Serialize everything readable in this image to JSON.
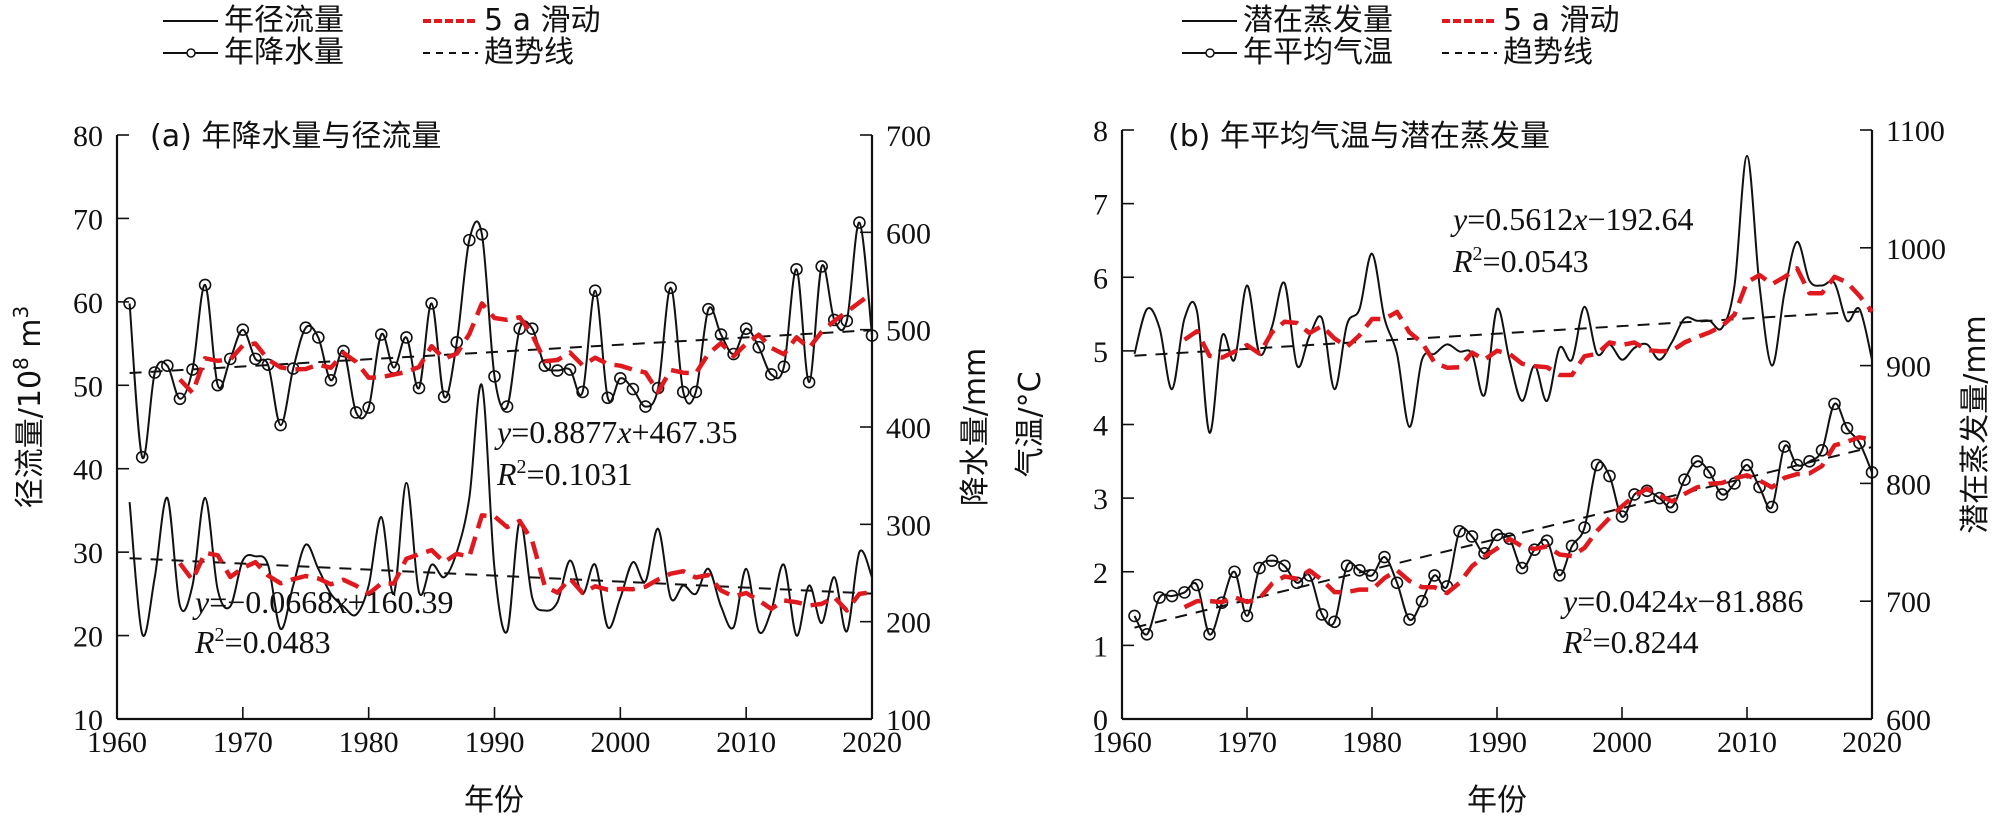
{
  "chart_data": [
    {
      "type": "line",
      "panel": "a",
      "title": "(a) 年降水量与径流量",
      "xlabel": "年份",
      "ylabel_left": "径流量/10⁸ m³",
      "ylabel_left_parts": {
        "main": "径流量/10",
        "sup": "8",
        "unit": " m",
        "sup2": "3"
      },
      "ylabel_right": "降水量/mm",
      "xlim": [
        1960,
        2020
      ],
      "ylim_left": [
        10,
        80
      ],
      "ylim_right": [
        100,
        700
      ],
      "x_ticks": [
        "1960",
        "1970",
        "1980",
        "1990",
        "2000",
        "2010",
        "2020"
      ],
      "y_ticks_left": [
        "10",
        "20",
        "30",
        "40",
        "50",
        "60",
        "70",
        "80"
      ],
      "y_ticks_right": [
        "100",
        "200",
        "300",
        "400",
        "500",
        "600",
        "700"
      ],
      "grid": false,
      "legend": {
        "placement": "top",
        "entries": [
          {
            "label": "年径流量",
            "style": "solid"
          },
          {
            "label": "5 a 滑动",
            "style": "red-dashed"
          },
          {
            "label": "年降水量",
            "style": "solid-circle"
          },
          {
            "label": "趋势线",
            "style": "black-dashed"
          }
        ]
      },
      "x": [
        1961,
        1962,
        1963,
        1964,
        1965,
        1966,
        1967,
        1968,
        1969,
        1970,
        1971,
        1972,
        1973,
        1974,
        1975,
        1976,
        1977,
        1978,
        1979,
        1980,
        1981,
        1982,
        1983,
        1984,
        1985,
        1986,
        1987,
        1988,
        1989,
        1990,
        1991,
        1992,
        1993,
        1994,
        1995,
        1996,
        1997,
        1998,
        1999,
        2000,
        2001,
        2002,
        2003,
        2004,
        2005,
        2006,
        2007,
        2008,
        2009,
        2010,
        2011,
        2012,
        2013,
        2014,
        2015,
        2016,
        2017,
        2018,
        2019,
        2020
      ],
      "series": [
        {
          "name": "年径流量",
          "axis": "left",
          "style": "smooth-solid",
          "values": [
            36.0,
            20.2,
            27.0,
            36.5,
            23.6,
            26.0,
            36.5,
            25.5,
            23.5,
            29.0,
            29.5,
            28.5,
            20.8,
            26.0,
            30.9,
            28.0,
            25.0,
            23.5,
            22.5,
            26.0,
            34.2,
            25.0,
            38.3,
            25.2,
            28.5,
            27.0,
            30.0,
            36.5,
            50.0,
            28.0,
            20.5,
            33.7,
            24.5,
            23.0,
            24.0,
            29.0,
            25.0,
            28.5,
            21.0,
            24.5,
            28.8,
            26.5,
            32.8,
            24.5,
            26.0,
            25.0,
            28.0,
            23.5,
            21.0,
            28.0,
            20.5,
            23.0,
            28.5,
            20.0,
            26.0,
            21.5,
            27.0,
            20.5,
            30.0,
            27.0
          ]
        },
        {
          "name": "年降水量",
          "axis": "right",
          "style": "solid-with-circles",
          "values": [
            527,
            369,
            456,
            463,
            429,
            459,
            546,
            443,
            470,
            500,
            470,
            464,
            402,
            460,
            502,
            492,
            448,
            478,
            415,
            420,
            495,
            461,
            492,
            440,
            527,
            431,
            487,
            592,
            598,
            452,
            421,
            501,
            501,
            463,
            458,
            459,
            436,
            540,
            430,
            450,
            439,
            421,
            440,
            543,
            436,
            436,
            521,
            495,
            475,
            501,
            482,
            454,
            462,
            562,
            446,
            565,
            510,
            509,
            610,
            494
          ]
        },
        {
          "name": "5 a 滑动 (径流量)",
          "axis": "left",
          "style": "red-dashed",
          "method": "5-year moving average of 年径流量"
        },
        {
          "name": "5 a 滑动 (降水量)",
          "axis": "right",
          "style": "red-dashed",
          "method": "5-year moving average of 年降水量"
        }
      ],
      "trendlines": [
        {
          "series": "年降水量",
          "equation_text": "=0.8877",
          "x_var": "x",
          "intercept_text": "+467.35",
          "r2_text": "=0.1031",
          "slope": 0.8877,
          "intercept": 467.35,
          "r2": 0.1031,
          "x_index_base": 1961
        },
        {
          "series": "年径流量",
          "equation_text": "=−0.0668",
          "x_var": "x",
          "intercept_text": "+160.39",
          "r2_text": "=0.0483",
          "slope": -0.0668,
          "intercept": 160.39,
          "r2": 0.0483,
          "x_index_base": 0
        }
      ]
    },
    {
      "type": "line",
      "panel": "b",
      "title": "(b) 年平均气温与潜在蒸发量",
      "xlabel": "年份",
      "ylabel_left": "气温/°C",
      "ylabel_right": "潜在蒸发量/mm",
      "xlim": [
        1960,
        2020
      ],
      "ylim_left": [
        0,
        8
      ],
      "ylim_right": [
        600,
        1100
      ],
      "x_ticks": [
        "1960",
        "1970",
        "1980",
        "1990",
        "2000",
        "2010",
        "2020"
      ],
      "y_ticks_left": [
        "0",
        "1",
        "2",
        "3",
        "4",
        "5",
        "6",
        "7",
        "8"
      ],
      "y_ticks_right": [
        "600",
        "700",
        "800",
        "900",
        "1000",
        "1100"
      ],
      "grid": false,
      "legend": {
        "placement": "top",
        "entries": [
          {
            "label": "潜在蒸发量",
            "style": "solid"
          },
          {
            "label": "5 a 滑动",
            "style": "red-dashed"
          },
          {
            "label": "年平均气温",
            "style": "solid-circle"
          },
          {
            "label": "趋势线",
            "style": "black-dashed"
          }
        ]
      },
      "x": [
        1961,
        1962,
        1963,
        1964,
        1965,
        1966,
        1967,
        1968,
        1969,
        1970,
        1971,
        1972,
        1973,
        1974,
        1975,
        1976,
        1977,
        1978,
        1979,
        1980,
        1981,
        1982,
        1983,
        1984,
        1985,
        1986,
        1987,
        1988,
        1989,
        1990,
        1991,
        1992,
        1993,
        1994,
        1995,
        1996,
        1997,
        1998,
        1999,
        2000,
        2001,
        2002,
        2003,
        2004,
        2005,
        2006,
        2007,
        2008,
        2009,
        2010,
        2011,
        2012,
        2013,
        2014,
        2015,
        2016,
        2017,
        2018,
        2019,
        2020
      ],
      "series": [
        {
          "name": "潜在蒸发量",
          "axis": "right",
          "style": "smooth-solid",
          "values": [
            910,
            948,
            932,
            880,
            940,
            946,
            843,
            925,
            905,
            968,
            910,
            933,
            970,
            900,
            925,
            940,
            880,
            935,
            948,
            995,
            940,
            910,
            848,
            905,
            910,
            918,
            912,
            910,
            875,
            948,
            905,
            870,
            900,
            870,
            915,
            905,
            950,
            910,
            918,
            905,
            915,
            918,
            905,
            920,
            940,
            938,
            938,
            932,
            968,
            1078,
            968,
            900,
            962,
            1005,
            972,
            968,
            970,
            938,
            948,
            905
          ]
        },
        {
          "name": "年平均气温",
          "axis": "left",
          "style": "solid-with-circles",
          "values": [
            1.4,
            1.15,
            1.65,
            1.67,
            1.72,
            1.82,
            1.15,
            1.58,
            2.0,
            1.4,
            2.05,
            2.15,
            2.08,
            1.85,
            1.95,
            1.42,
            1.32,
            2.08,
            2.02,
            1.95,
            2.2,
            1.85,
            1.35,
            1.6,
            1.95,
            1.8,
            2.55,
            2.48,
            2.25,
            2.5,
            2.45,
            2.05,
            2.3,
            2.42,
            1.95,
            2.35,
            2.6,
            3.45,
            3.3,
            2.75,
            3.05,
            3.1,
            3.0,
            2.88,
            3.25,
            3.5,
            3.35,
            3.05,
            3.2,
            3.45,
            3.15,
            2.88,
            3.7,
            3.45,
            3.5,
            3.65,
            4.28,
            3.95,
            3.75,
            3.35
          ]
        },
        {
          "name": "5 a 滑动 (潜在蒸发量)",
          "axis": "right",
          "style": "red-dashed",
          "method": "5-year moving average of 潜在蒸发量"
        },
        {
          "name": "5 a 滑动 (气温)",
          "axis": "left",
          "style": "red-dashed",
          "method": "5-year moving average of 年平均气温"
        }
      ],
      "trendlines": [
        {
          "series": "潜在蒸发量",
          "equation_text": "=0.5612",
          "x_var": "x",
          "intercept_text": "−192.64",
          "r2_text": "=0.0543",
          "slope": 0.5612,
          "intercept": -192.64,
          "r2": 0.0543
        },
        {
          "series": "年平均气温",
          "equation_text": "=0.0424",
          "x_var": "x",
          "intercept_text": "−81.886",
          "r2_text": "=0.8244",
          "slope": 0.0424,
          "intercept": -81.886,
          "r2": 0.8244
        }
      ]
    }
  ],
  "labels": {
    "y_italic": "y",
    "x_italic": "x",
    "r_italic": "R",
    "r_sup": "2"
  },
  "colors": {
    "line": "#111111",
    "moving_average": "#e0191f",
    "trend": "#111111",
    "axis": "#111111"
  }
}
